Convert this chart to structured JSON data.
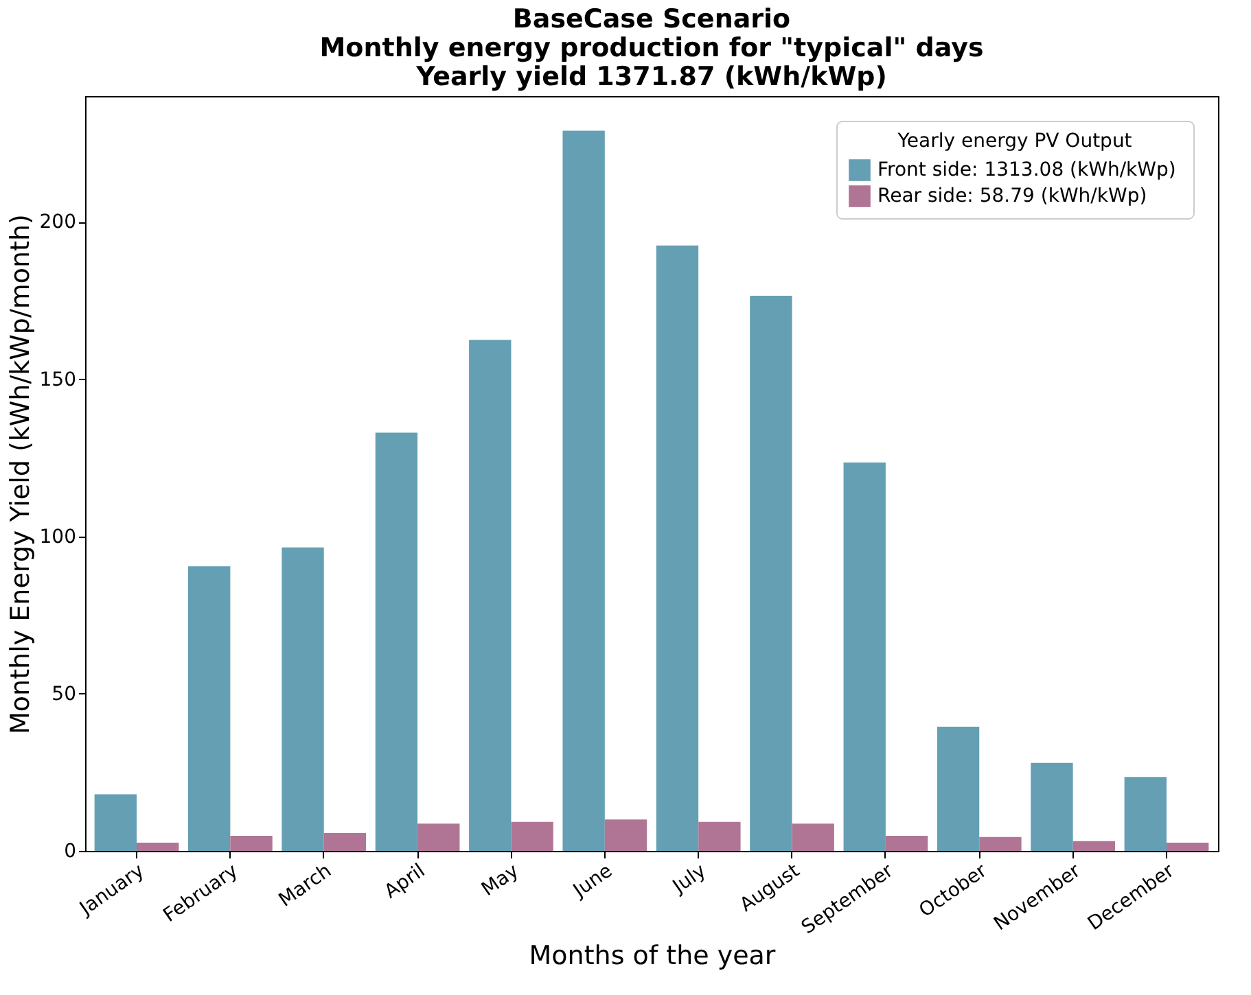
{
  "chart_data": {
    "type": "bar",
    "title": "BaseCase Scenario\nMonthly energy production for \"typical\" days\nYearly yield 1371.87 (kWh/kWp)",
    "xlabel": "Months of the year",
    "ylabel": "Monthly Energy Yield (kWh/kWp/month)",
    "legend_title": "Yearly energy PV Output",
    "legend": "top right",
    "grid": false,
    "categories": [
      "January",
      "February",
      "March",
      "April",
      "May",
      "June",
      "July",
      "August",
      "September",
      "October",
      "November",
      "December"
    ],
    "series": [
      {
        "name": "Front side:  1313.08 (kWh/kWp)",
        "color": "#659fb4",
        "values": [
          18,
          90.5,
          96.5,
          133,
          162.5,
          229,
          192.5,
          176.5,
          123.5,
          39.5,
          28,
          23.5
        ]
      },
      {
        "name": "Rear side: 58.79 (kWh/kWp)",
        "color": "#b07594",
        "values": [
          2.6,
          4.8,
          5.7,
          8.7,
          9.2,
          10,
          9.2,
          8.7,
          4.8,
          4.4,
          3.1,
          2.6
        ]
      }
    ],
    "ylim": [
      0,
      240
    ],
    "yticks": [
      0,
      50,
      100,
      150,
      200
    ]
  }
}
